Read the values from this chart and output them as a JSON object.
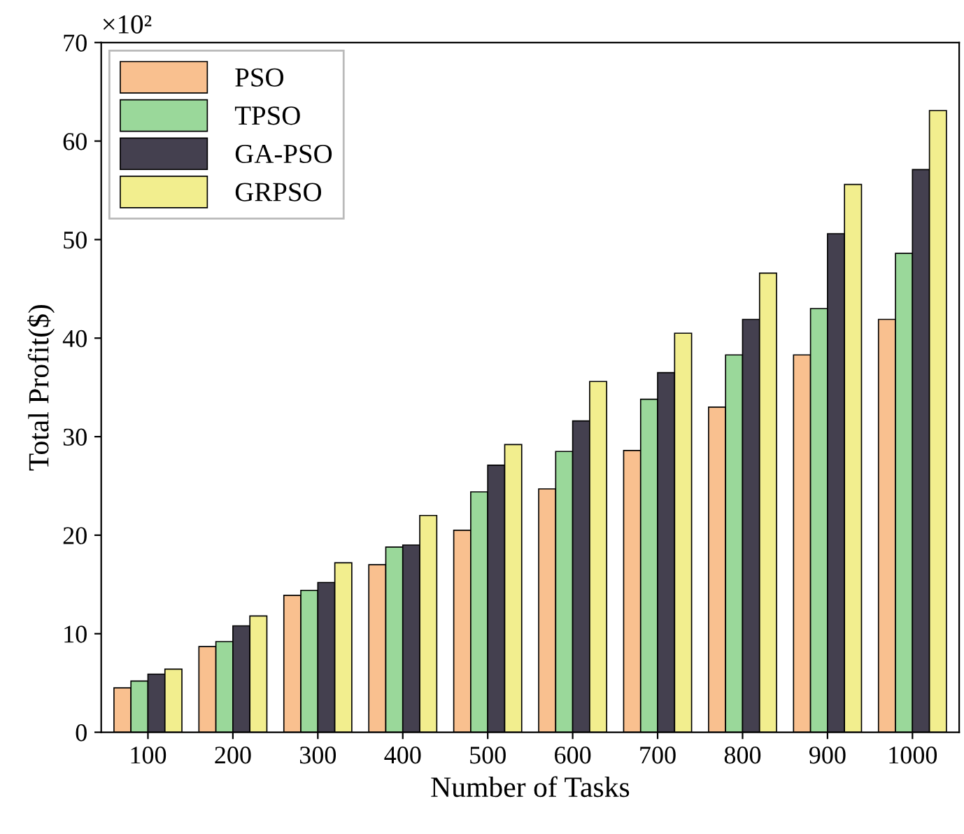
{
  "chart_data": {
    "type": "bar",
    "xlabel": "Number of Tasks",
    "ylabel": "Total Profit($)",
    "annotations": [
      "×10²"
    ],
    "categories": [
      "100",
      "200",
      "300",
      "400",
      "500",
      "600",
      "700",
      "800",
      "900",
      "1000"
    ],
    "series": [
      {
        "name": "PSO",
        "color": "#f9c08f",
        "values": [
          4.5,
          8.7,
          13.9,
          17.0,
          20.5,
          24.7,
          28.6,
          33.0,
          38.3,
          41.9
        ]
      },
      {
        "name": "TPSO",
        "color": "#9ad89a",
        "values": [
          5.2,
          9.2,
          14.4,
          18.8,
          24.4,
          28.5,
          33.8,
          38.3,
          43.0,
          48.6
        ]
      },
      {
        "name": "GA-PSO",
        "color": "#44404f",
        "values": [
          5.9,
          10.8,
          15.2,
          19.0,
          27.1,
          31.6,
          36.5,
          41.9,
          50.6,
          57.1
        ]
      },
      {
        "name": "GRPSO",
        "color": "#f2ee8e",
        "values": [
          6.4,
          11.8,
          17.2,
          22.0,
          29.2,
          35.6,
          40.5,
          46.6,
          55.6,
          63.1
        ]
      }
    ],
    "ylim": [
      0,
      70
    ],
    "yticks": [
      0,
      10,
      20,
      30,
      40,
      50,
      60,
      70
    ],
    "grid": false,
    "legend": "top left"
  }
}
